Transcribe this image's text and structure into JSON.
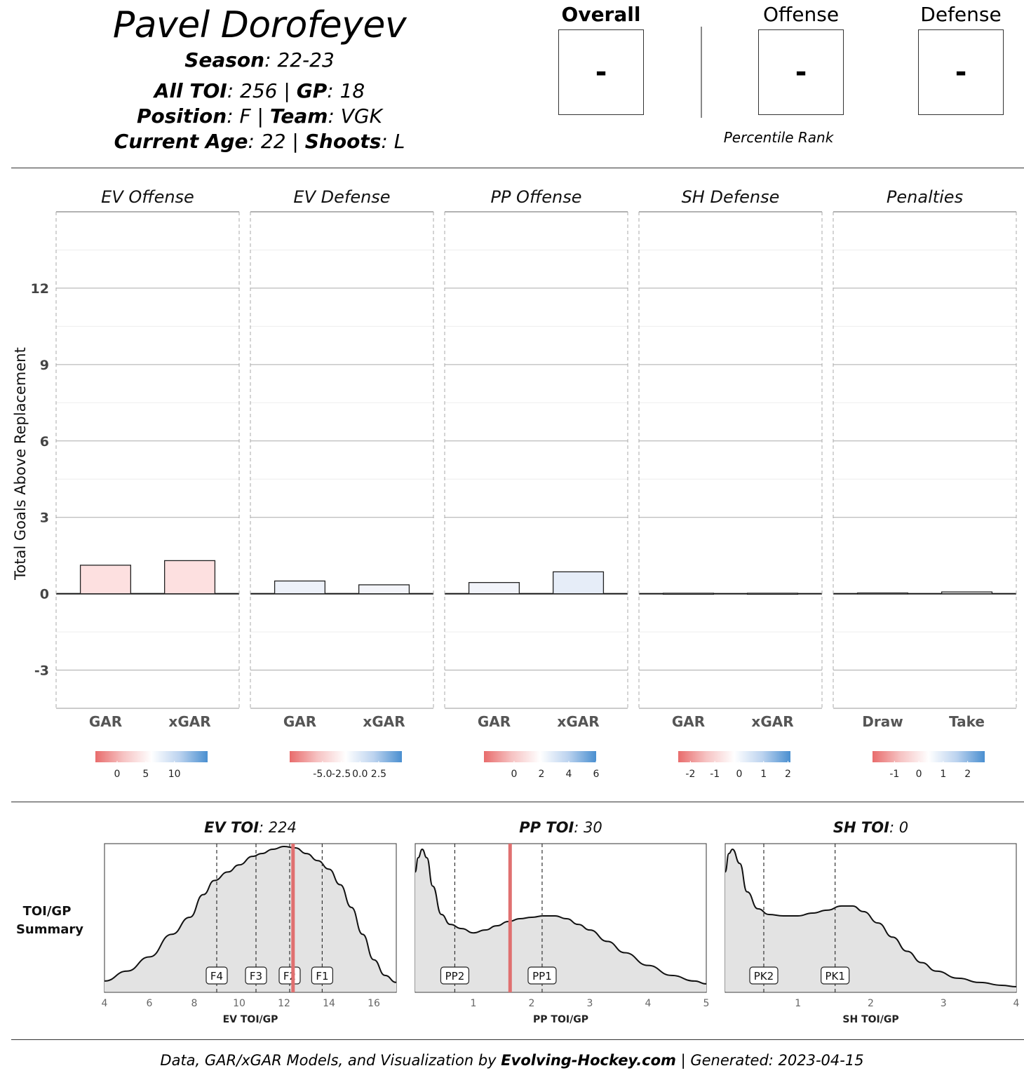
{
  "player": {
    "name": "Pavel Dorofeyev",
    "season_label": "Season",
    "season": "22-23",
    "toi_label": "All TOI",
    "toi": "256",
    "gp_label": "GP",
    "gp": "18",
    "position_label": "Position",
    "position": "F",
    "team_label": "Team",
    "team": "VGK",
    "age_label": "Current Age",
    "age": "22",
    "shoots_label": "Shoots",
    "shoots": "L"
  },
  "ranks": {
    "overall_label": "Overall",
    "overall_value": "-",
    "offense_label": "Offense",
    "offense_value": "-",
    "defense_label": "Defense",
    "defense_value": "-",
    "caption": "Percentile Rank"
  },
  "footer": {
    "prefix": "Data, GAR/xGAR Models, and Visualization by ",
    "brand": "Evolving-Hockey.com",
    "suffix": " | Generated: 2023-04-15"
  },
  "chart_data": [
    {
      "type": "bar",
      "ylabel": "Total Goals Above Replacement",
      "ylim": [
        -4.5,
        15
      ],
      "yticks": [
        -3,
        0,
        3,
        6,
        9,
        12
      ],
      "panels": [
        {
          "title": "EV Offense",
          "categories": [
            "GAR",
            "xGAR"
          ],
          "values": [
            1.12,
            1.3
          ],
          "colors": [
            "#fde0e0",
            "#fde0e0"
          ],
          "legend": {
            "ticks": [
              "0",
              "5",
              "10"
            ],
            "tick_values": [
              0,
              5,
              10
            ],
            "range": [
              -3.8,
              15.8
            ]
          }
        },
        {
          "title": "EV Defense",
          "categories": [
            "GAR",
            "xGAR"
          ],
          "values": [
            0.5,
            0.35
          ],
          "colors": [
            "#edf1f9",
            "#f4f5fa"
          ],
          "legend": {
            "ticks": [
              "-5.0",
              "-2.5",
              "0.0",
              "2.5"
            ],
            "tick_values": [
              -5,
              -2.5,
              0,
              2.5
            ],
            "range": [
              -9.4,
              5.6
            ]
          }
        },
        {
          "title": "PP Offense",
          "categories": [
            "GAR",
            "xGAR"
          ],
          "values": [
            0.44,
            0.86
          ],
          "colors": [
            "#f2f4fa",
            "#e6edf8"
          ],
          "legend": {
            "ticks": [
              "0",
              "2",
              "4",
              "6"
            ],
            "tick_values": [
              0,
              2,
              4,
              6
            ],
            "range": [
              -2.2,
              6
            ]
          }
        },
        {
          "title": "SH Defense",
          "categories": [
            "GAR",
            "xGAR"
          ],
          "values": [
            0.02,
            0.02
          ],
          "colors": [
            "#f5f5f5",
            "#f5f5f5"
          ],
          "legend": {
            "ticks": [
              "-2",
              "-1",
              "0",
              "1",
              "2"
            ],
            "tick_values": [
              -2,
              -1,
              0,
              1,
              2
            ],
            "range": [
              -2.5,
              2.1
            ]
          }
        },
        {
          "title": "Penalties",
          "categories": [
            "Draw",
            "Take"
          ],
          "values": [
            0.03,
            0.07
          ],
          "colors": [
            "#f5f5f5",
            "#f5f5f5"
          ],
          "legend": {
            "ticks": [
              "-1",
              "0",
              "1",
              "2"
            ],
            "tick_values": [
              -1,
              0,
              1,
              2
            ],
            "range": [
              -1.9,
              2.7
            ]
          }
        }
      ]
    },
    {
      "type": "area",
      "row_label": [
        "TOI/GP",
        "Summary"
      ],
      "panels": [
        {
          "title_label": "EV TOI",
          "title_value": "224",
          "xlabel": "EV TOI/GP",
          "xlim": [
            4,
            17
          ],
          "xticks": [
            4,
            6,
            8,
            10,
            12,
            14,
            16
          ],
          "density": {
            "x": [
              4,
              5,
              6,
              7,
              7.8,
              8.4,
              8.9,
              9.5,
              10,
              10.6,
              11,
              11.5,
              12,
              12.5,
              13,
              13.5,
              14,
              14.5,
              15,
              15.5,
              16,
              16.5,
              17
            ],
            "y": [
              0.05,
              0.12,
              0.22,
              0.38,
              0.5,
              0.66,
              0.76,
              0.82,
              0.87,
              0.93,
              0.95,
              0.98,
              1.0,
              0.99,
              0.95,
              0.9,
              0.84,
              0.73,
              0.57,
              0.38,
              0.2,
              0.09,
              0.04
            ]
          },
          "markers": [
            {
              "label": "F4",
              "x": 9.0
            },
            {
              "label": "F3",
              "x": 10.75
            },
            {
              "label": "F2",
              "x": 12.25
            },
            {
              "label": "F1",
              "x": 13.7
            }
          ],
          "player_value": 12.4
        },
        {
          "title_label": "PP TOI",
          "title_value": "30",
          "xlabel": "PP TOI/GP",
          "xlim": [
            0,
            5
          ],
          "xticks": [
            1,
            2,
            3,
            4,
            5
          ],
          "density": {
            "x": [
              0,
              0.05,
              0.12,
              0.2,
              0.3,
              0.45,
              0.6,
              0.8,
              1.0,
              1.2,
              1.4,
              1.6,
              1.8,
              2.0,
              2.2,
              2.4,
              2.6,
              2.8,
              3.0,
              3.3,
              3.6,
              4.0,
              4.4,
              4.8,
              5.0
            ],
            "y": [
              0.82,
              0.92,
              0.98,
              0.92,
              0.72,
              0.52,
              0.45,
              0.42,
              0.39,
              0.41,
              0.44,
              0.47,
              0.49,
              0.5,
              0.51,
              0.51,
              0.49,
              0.45,
              0.41,
              0.33,
              0.25,
              0.16,
              0.09,
              0.05,
              0.03
            ]
          },
          "markers": [
            {
              "label": "PP2",
              "x": 0.68
            },
            {
              "label": "PP1",
              "x": 2.18
            }
          ],
          "player_value": 1.63
        },
        {
          "title_label": "SH TOI",
          "title_value": "0",
          "xlabel": "SH TOI/GP",
          "xlim": [
            0,
            4
          ],
          "xticks": [
            1,
            2,
            3,
            4
          ],
          "density": {
            "x": [
              0,
              0.05,
              0.1,
              0.2,
              0.3,
              0.45,
              0.6,
              0.8,
              1.0,
              1.2,
              1.4,
              1.6,
              1.75,
              1.9,
              2.1,
              2.3,
              2.5,
              2.7,
              2.9,
              3.2,
              3.5,
              3.8,
              4.0
            ],
            "y": [
              0.82,
              0.95,
              0.98,
              0.88,
              0.68,
              0.56,
              0.52,
              0.51,
              0.51,
              0.53,
              0.55,
              0.58,
              0.58,
              0.54,
              0.46,
              0.36,
              0.26,
              0.18,
              0.12,
              0.07,
              0.04,
              0.02,
              0.01
            ]
          },
          "markers": [
            {
              "label": "PK2",
              "x": 0.53
            },
            {
              "label": "PK1",
              "x": 1.51
            }
          ],
          "player_value": null
        }
      ]
    }
  ]
}
